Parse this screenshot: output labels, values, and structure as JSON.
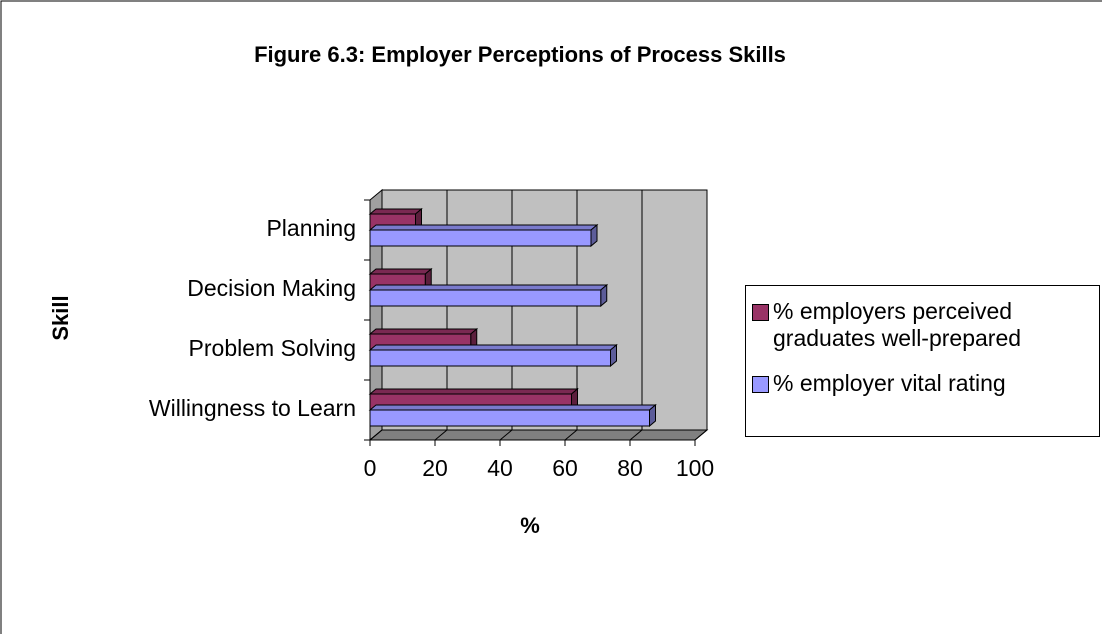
{
  "chart_data": {
    "type": "bar3d_horizontal",
    "title": "Figure 6.3: Employer Perceptions of Process Skills",
    "xlabel": "%",
    "ylabel": "Skill",
    "categories": [
      "Willingness to Learn",
      "Problem Solving",
      "Decision Making",
      "Planning"
    ],
    "series": [
      {
        "name": "% employers perceived graduates well-prepared",
        "color": "#993366",
        "values": [
          62,
          31,
          17,
          14
        ]
      },
      {
        "name": "% employer vital rating",
        "color": "#9999ff",
        "values": [
          86,
          74,
          71,
          68
        ]
      }
    ],
    "xlim": [
      0,
      100
    ],
    "xticks": [
      0,
      20,
      40,
      60,
      80,
      100
    ],
    "grid": true,
    "legend": "right"
  }
}
